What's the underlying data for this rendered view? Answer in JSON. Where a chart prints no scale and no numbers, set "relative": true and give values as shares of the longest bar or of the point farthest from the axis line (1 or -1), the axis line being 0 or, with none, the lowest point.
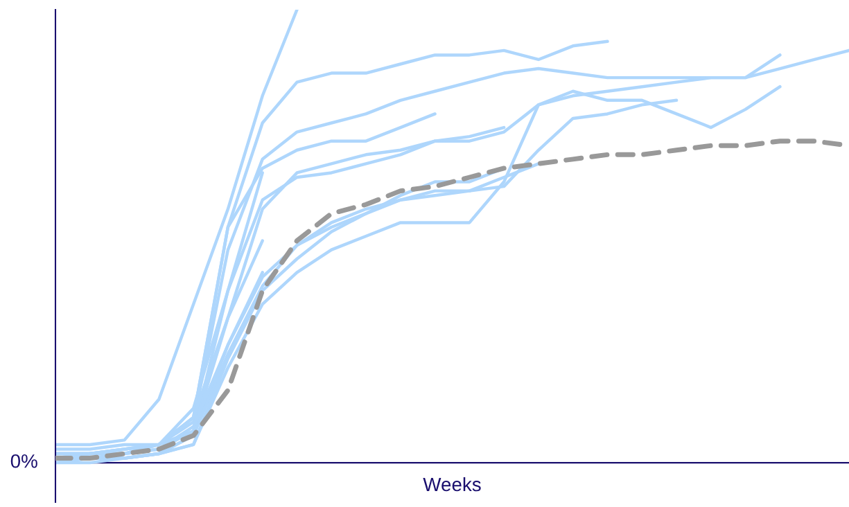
{
  "chart_data": {
    "type": "line",
    "relative": true,
    "xlabel": "Weeks",
    "annotations": [
      "0%"
    ],
    "categories": [
      null,
      null,
      null,
      null,
      null,
      null,
      null,
      null,
      null,
      null,
      null,
      null,
      null,
      null,
      null,
      null,
      null,
      null,
      null,
      null,
      null,
      null,
      null,
      null
    ],
    "series": [
      {
        "color": "#aed6fc",
        "values": [
          0.04,
          0.04,
          0.05,
          0.14,
          0.35,
          0.56,
          0.81,
          1.0,
          null,
          null,
          null,
          null,
          null,
          null,
          null,
          null,
          null,
          null,
          null,
          null,
          null,
          null,
          null,
          null
        ]
      },
      {
        "color": "#aed6fc",
        "values": [
          0.03,
          0.03,
          0.04,
          0.04,
          0.1,
          0.52,
          0.75,
          0.84,
          0.86,
          0.86,
          0.88,
          0.9,
          0.9,
          0.91,
          0.89,
          0.92,
          0.93,
          null,
          null,
          null,
          null,
          null,
          null,
          null
        ]
      },
      {
        "color": "#aed6fc",
        "values": [
          0.02,
          0.02,
          0.03,
          0.04,
          0.09,
          0.47,
          0.67,
          0.73,
          0.75,
          0.77,
          0.8,
          0.82,
          0.84,
          0.86,
          0.87,
          0.86,
          0.85,
          0.85,
          0.85,
          0.85,
          0.85,
          0.9,
          null,
          null
        ]
      },
      {
        "color": "#aed6fc",
        "values": [
          0.01,
          0.02,
          0.02,
          0.03,
          0.07,
          0.38,
          0.58,
          0.63,
          0.64,
          0.66,
          0.68,
          0.71,
          0.71,
          0.73,
          0.79,
          0.81,
          0.82,
          0.83,
          0.84,
          0.85,
          0.85,
          0.87,
          0.89,
          0.91
        ]
      },
      {
        "color": "#aed6fc",
        "values": [
          0.0,
          0.01,
          0.01,
          0.02,
          0.04,
          0.21,
          0.35,
          0.42,
          0.47,
          0.5,
          0.53,
          0.53,
          0.53,
          0.62,
          0.79,
          0.82,
          0.8,
          0.8,
          0.77,
          0.74,
          0.78,
          0.83,
          null,
          null
        ]
      },
      {
        "color": "#aed6fc",
        "values": [
          0.01,
          0.01,
          0.01,
          0.02,
          0.06,
          0.26,
          0.41,
          0.48,
          0.53,
          0.56,
          0.58,
          0.59,
          0.6,
          0.61,
          0.69,
          0.76,
          0.77,
          0.79,
          0.8,
          null,
          null,
          null,
          null,
          null
        ]
      },
      {
        "color": "#aed6fc",
        "values": [
          0.02,
          0.02,
          0.03,
          0.04,
          0.1,
          0.52,
          0.65,
          0.69,
          0.71,
          0.71,
          0.74,
          0.77,
          null,
          null,
          null,
          null,
          null,
          null,
          null,
          null,
          null,
          null,
          null,
          null
        ]
      },
      {
        "color": "#aed6fc",
        "values": [
          0.02,
          0.02,
          0.02,
          0.04,
          0.07,
          0.32,
          0.56,
          0.64,
          0.66,
          0.68,
          0.69,
          0.71,
          0.72,
          0.74,
          null,
          null,
          null,
          null,
          null,
          null,
          null,
          null,
          null,
          null
        ]
      },
      {
        "color": "#aed6fc",
        "values": [
          0.02,
          0.02,
          0.03,
          0.04,
          0.12,
          0.38,
          0.64,
          null,
          null,
          null,
          null,
          null,
          null,
          null,
          null,
          null,
          null,
          null,
          null,
          null,
          null,
          null,
          null,
          null
        ]
      },
      {
        "color": "#aed6fc",
        "values": [
          0.01,
          0.02,
          0.02,
          0.04,
          0.1,
          0.32,
          0.49,
          null,
          null,
          null,
          null,
          null,
          null,
          null,
          null,
          null,
          null,
          null,
          null,
          null,
          null,
          null,
          null,
          null
        ]
      },
      {
        "color": "#aed6fc",
        "values": [
          0.01,
          0.01,
          0.02,
          0.03,
          0.08,
          0.26,
          0.42,
          null,
          null,
          null,
          null,
          null,
          null,
          null,
          null,
          null,
          null,
          null,
          null,
          null,
          null,
          null,
          null,
          null
        ]
      },
      {
        "color": "#aed6fc",
        "values": [
          0.01,
          0.01,
          0.01,
          0.02,
          0.06,
          0.24,
          0.39,
          0.48,
          0.52,
          0.55,
          0.58,
          0.6,
          0.6,
          0.63,
          0.66,
          null,
          null,
          null,
          null,
          null,
          null,
          null,
          null,
          null
        ]
      },
      {
        "color": "#aed6fc",
        "values": [
          0.0,
          0.0,
          0.01,
          0.02,
          0.04,
          0.23,
          0.38,
          0.45,
          0.51,
          0.55,
          0.59,
          0.62,
          0.62,
          0.65,
          null,
          null,
          null,
          null,
          null,
          null,
          null,
          null,
          null,
          null
        ]
      },
      {
        "color": "#999999",
        "line_style": "dashed",
        "values": [
          0.01,
          0.01,
          0.02,
          0.03,
          0.06,
          0.16,
          0.38,
          0.49,
          0.55,
          0.57,
          0.6,
          0.61,
          0.63,
          0.65,
          0.66,
          0.67,
          0.68,
          0.68,
          0.69,
          0.7,
          0.7,
          0.71,
          0.71,
          0.7
        ]
      }
    ]
  }
}
